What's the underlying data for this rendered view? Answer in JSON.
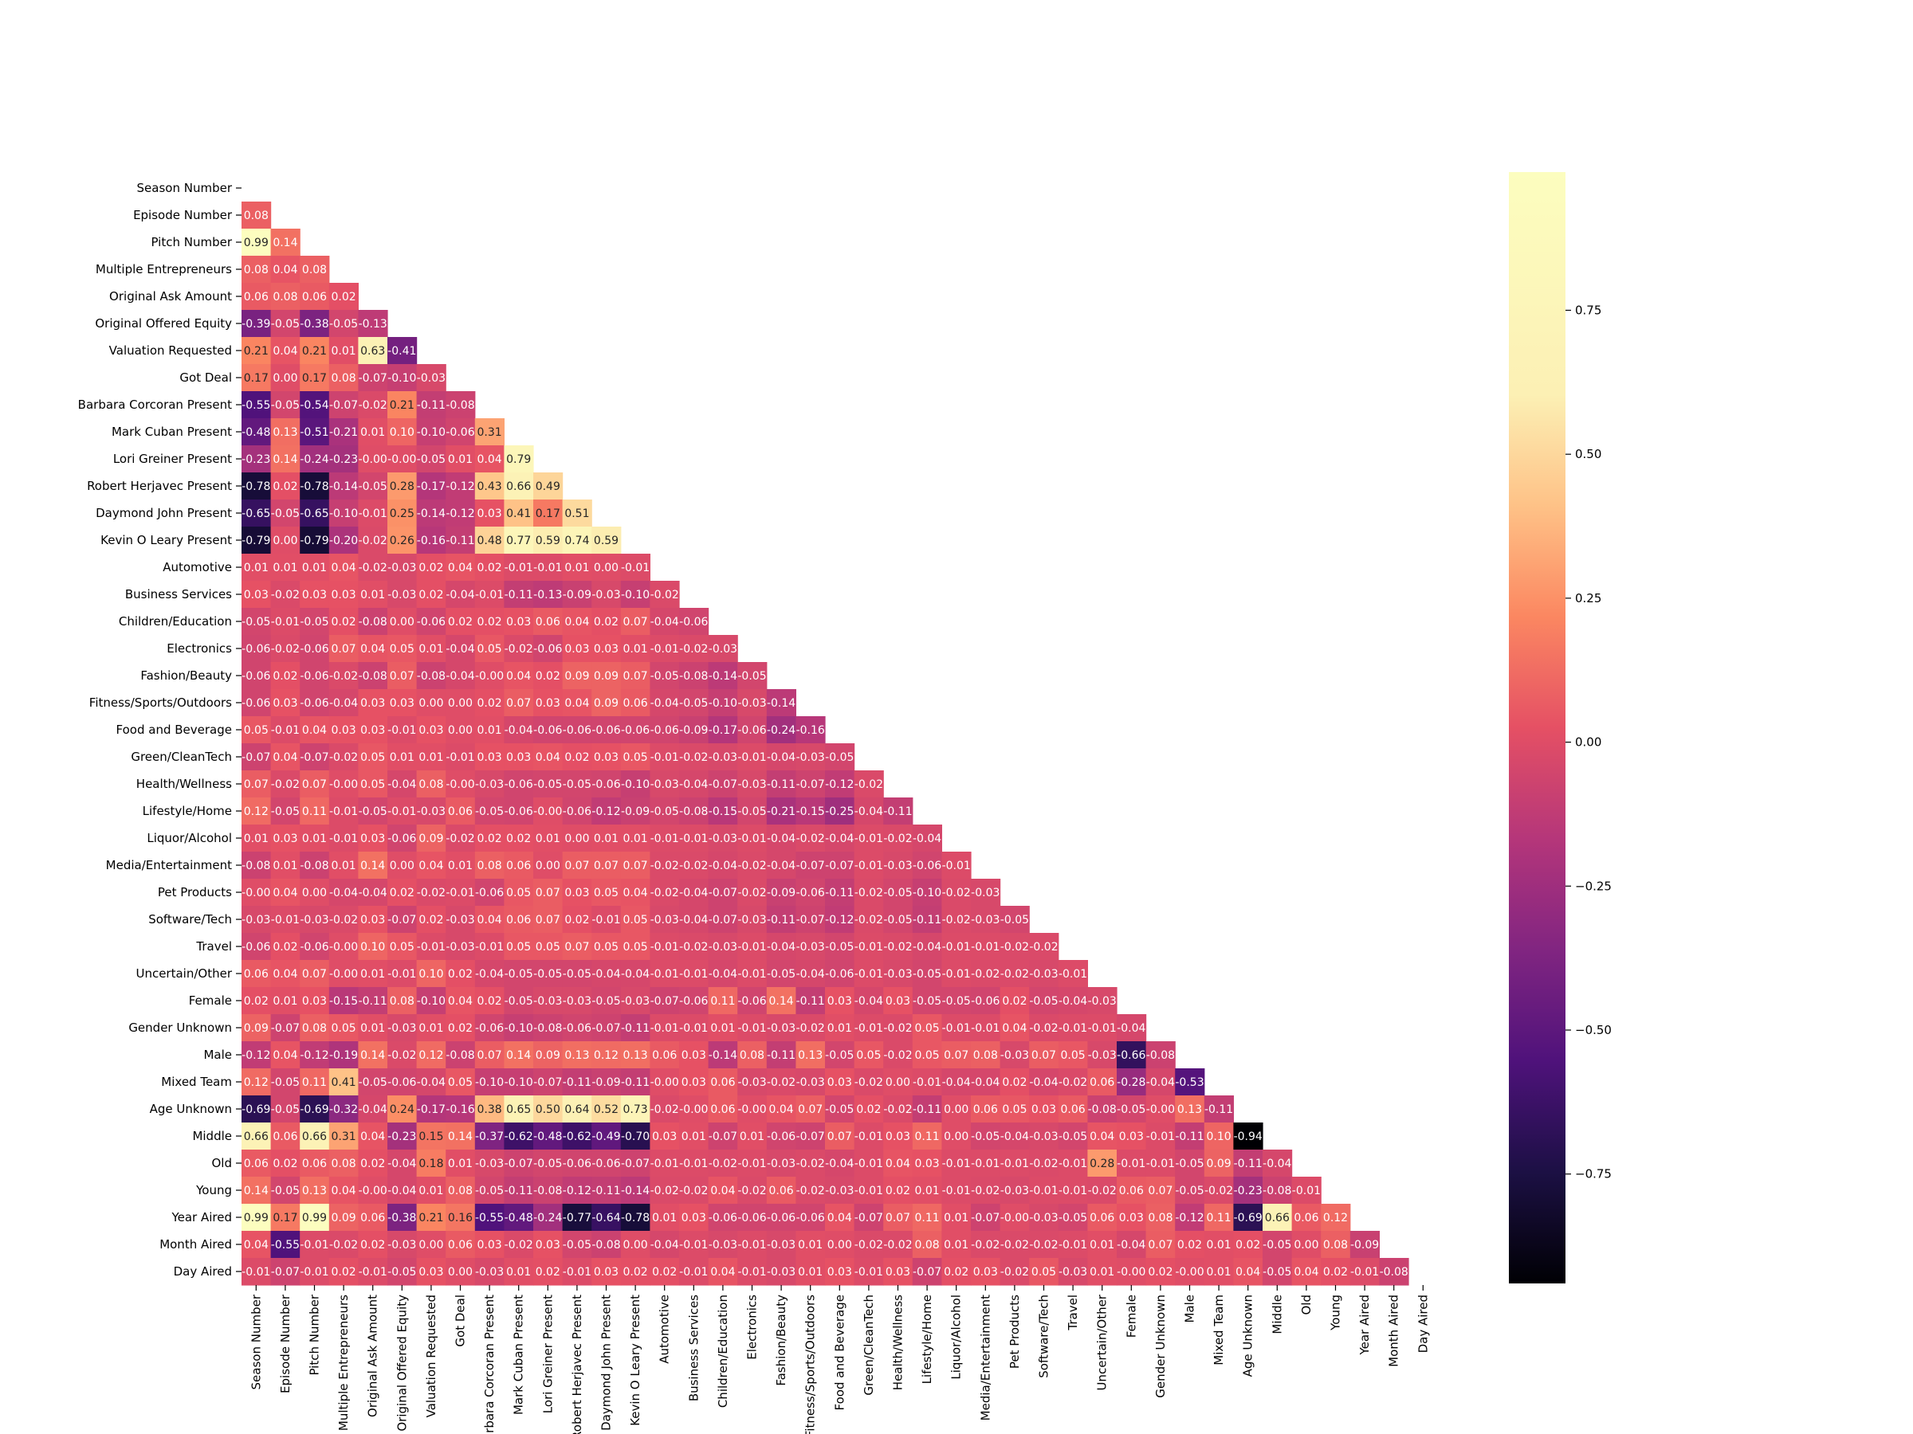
{
  "chart_data": {
    "type": "heatmap",
    "labels": [
      "Season Number",
      "Episode Number",
      "Pitch Number",
      "Multiple Entrepreneurs",
      "Original Ask Amount",
      "Original Offered Equity",
      "Valuation Requested",
      "Got Deal",
      "Barbara Corcoran Present",
      "Mark Cuban Present",
      "Lori Greiner Present",
      "Robert Herjavec Present",
      "Daymond John Present",
      "Kevin O Leary Present",
      "Automotive",
      "Business Services",
      "Children/Education",
      "Electronics",
      "Fashion/Beauty",
      "Fitness/Sports/Outdoors",
      "Food and Beverage",
      "Green/CleanTech",
      "Health/Wellness",
      "Lifestyle/Home",
      "Liquor/Alcohol",
      "Media/Entertainment",
      "Pet Products",
      "Software/Tech",
      "Travel",
      "Uncertain/Other",
      "Female",
      "Gender Unknown",
      "Male",
      "Mixed Team",
      "Age Unknown",
      "Middle",
      "Old",
      "Young",
      "Year Aired",
      "Month Aired",
      "Day Aired"
    ],
    "matrix_lower": [
      [],
      [
        0.08
      ],
      [
        0.99,
        0.14
      ],
      [
        0.08,
        0.04,
        0.08
      ],
      [
        0.06,
        0.08,
        0.06,
        0.02
      ],
      [
        -0.39,
        -0.05,
        -0.38,
        -0.05,
        -0.13
      ],
      [
        0.21,
        0.04,
        0.21,
        0.01,
        0.63,
        -0.41
      ],
      [
        0.17,
        0.0,
        0.17,
        0.08,
        -0.07,
        -0.1,
        -0.03
      ],
      [
        -0.55,
        -0.05,
        -0.54,
        -0.07,
        -0.02,
        0.21,
        -0.11,
        -0.08
      ],
      [
        -0.48,
        0.13,
        -0.51,
        -0.21,
        0.01,
        0.1,
        -0.1,
        -0.06,
        0.31
      ],
      [
        -0.23,
        0.14,
        -0.24,
        -0.23,
        -0.0,
        -0.0,
        -0.05,
        0.01,
        0.04,
        0.79
      ],
      [
        -0.78,
        0.02,
        -0.78,
        -0.14,
        -0.05,
        0.28,
        -0.17,
        -0.12,
        0.43,
        0.66,
        0.49
      ],
      [
        -0.65,
        -0.05,
        -0.65,
        -0.1,
        -0.01,
        0.25,
        -0.14,
        -0.12,
        0.03,
        0.41,
        0.17,
        0.51
      ],
      [
        -0.79,
        0.0,
        -0.79,
        -0.2,
        -0.02,
        0.26,
        -0.16,
        -0.11,
        0.48,
        0.77,
        0.59,
        0.74,
        0.59
      ],
      [
        0.01,
        0.01,
        0.01,
        0.04,
        -0.02,
        -0.03,
        0.02,
        0.04,
        0.02,
        -0.01,
        -0.01,
        0.01,
        0.0,
        -0.01
      ],
      [
        0.03,
        -0.02,
        0.03,
        0.03,
        0.01,
        -0.03,
        0.02,
        -0.04,
        -0.01,
        -0.11,
        -0.13,
        -0.09,
        -0.03,
        -0.1,
        -0.02
      ],
      [
        -0.05,
        -0.01,
        -0.05,
        0.02,
        -0.08,
        0.0,
        -0.06,
        0.02,
        0.02,
        0.03,
        0.06,
        0.04,
        0.02,
        0.07,
        -0.04,
        -0.06
      ],
      [
        -0.06,
        -0.02,
        -0.06,
        0.07,
        0.04,
        0.05,
        0.01,
        -0.04,
        0.05,
        -0.02,
        -0.06,
        0.03,
        0.03,
        0.01,
        -0.01,
        -0.02,
        -0.03
      ],
      [
        -0.06,
        0.02,
        -0.06,
        -0.02,
        -0.08,
        0.07,
        -0.08,
        -0.04,
        -0.0,
        0.04,
        0.02,
        0.09,
        0.09,
        0.07,
        -0.05,
        -0.08,
        -0.14,
        -0.05
      ],
      [
        -0.06,
        0.03,
        -0.06,
        -0.04,
        0.03,
        0.03,
        0.0,
        0.0,
        0.02,
        0.07,
        0.03,
        0.04,
        0.09,
        0.06,
        -0.04,
        -0.05,
        -0.1,
        -0.03,
        -0.14
      ],
      [
        0.05,
        -0.01,
        0.04,
        0.03,
        0.03,
        -0.01,
        0.03,
        0.0,
        0.01,
        -0.04,
        -0.06,
        -0.06,
        -0.06,
        -0.06,
        -0.06,
        -0.09,
        -0.17,
        -0.06,
        -0.24,
        -0.16
      ],
      [
        -0.07,
        0.04,
        -0.07,
        -0.02,
        0.05,
        0.01,
        0.01,
        -0.01,
        0.03,
        0.03,
        0.04,
        0.02,
        0.03,
        0.05,
        -0.01,
        -0.02,
        -0.03,
        -0.01,
        -0.04,
        -0.03,
        -0.05
      ],
      [
        0.07,
        -0.02,
        0.07,
        -0.0,
        0.05,
        -0.04,
        0.08,
        -0.0,
        -0.03,
        -0.06,
        -0.05,
        -0.05,
        -0.06,
        -0.1,
        -0.03,
        -0.04,
        -0.07,
        -0.03,
        -0.11,
        -0.07,
        -0.12,
        -0.02
      ],
      [
        0.12,
        -0.05,
        0.11,
        -0.01,
        -0.05,
        -0.01,
        -0.03,
        0.06,
        -0.05,
        -0.06,
        -0.0,
        -0.06,
        -0.12,
        -0.09,
        -0.05,
        -0.08,
        -0.15,
        -0.05,
        -0.21,
        -0.15,
        -0.25,
        -0.04,
        -0.11
      ],
      [
        0.01,
        0.03,
        0.01,
        -0.01,
        0.03,
        -0.06,
        0.09,
        -0.02,
        0.02,
        0.02,
        0.01,
        0.0,
        0.01,
        0.01,
        -0.01,
        -0.01,
        -0.03,
        -0.01,
        -0.04,
        -0.02,
        -0.04,
        -0.01,
        -0.02,
        -0.04
      ],
      [
        -0.08,
        0.01,
        -0.08,
        0.01,
        0.14,
        0.0,
        0.04,
        0.01,
        0.08,
        0.06,
        0.0,
        0.07,
        0.07,
        0.07,
        -0.02,
        -0.02,
        -0.04,
        -0.02,
        -0.04,
        -0.07,
        -0.07,
        -0.01,
        -0.03,
        -0.06,
        -0.01
      ],
      [
        -0.0,
        0.04,
        0.0,
        -0.04,
        -0.04,
        0.02,
        -0.02,
        -0.01,
        -0.06,
        0.05,
        0.07,
        0.03,
        0.05,
        0.04,
        -0.02,
        -0.04,
        -0.07,
        -0.02,
        -0.09,
        -0.06,
        -0.11,
        -0.02,
        -0.05,
        -0.1,
        -0.02,
        -0.03
      ],
      [
        -0.03,
        -0.01,
        -0.03,
        -0.02,
        0.03,
        -0.07,
        0.02,
        -0.03,
        0.04,
        0.06,
        0.07,
        0.02,
        -0.01,
        0.05,
        -0.03,
        -0.04,
        -0.07,
        -0.03,
        -0.11,
        -0.07,
        -0.12,
        -0.02,
        -0.05,
        -0.11,
        -0.02,
        -0.03,
        -0.05
      ],
      [
        -0.06,
        0.02,
        -0.06,
        -0.0,
        0.1,
        0.05,
        -0.01,
        -0.03,
        -0.01,
        0.05,
        0.05,
        0.07,
        0.05,
        0.05,
        -0.01,
        -0.02,
        -0.03,
        -0.01,
        -0.04,
        -0.03,
        -0.05,
        -0.01,
        -0.02,
        -0.04,
        -0.01,
        -0.01,
        -0.02,
        -0.02
      ],
      [
        0.06,
        0.04,
        0.07,
        -0.0,
        0.01,
        -0.01,
        0.1,
        0.02,
        -0.04,
        -0.05,
        -0.05,
        -0.05,
        -0.04,
        -0.04,
        -0.01,
        -0.01,
        -0.04,
        -0.01,
        -0.05,
        -0.04,
        -0.06,
        -0.01,
        -0.03,
        -0.05,
        -0.01,
        -0.02,
        -0.02,
        -0.03,
        -0.01
      ],
      [
        0.02,
        0.01,
        0.03,
        -0.15,
        -0.11,
        0.08,
        -0.1,
        0.04,
        0.02,
        -0.05,
        -0.03,
        -0.03,
        -0.05,
        -0.03,
        -0.07,
        -0.06,
        0.11,
        -0.06,
        0.14,
        -0.11,
        0.03,
        -0.04,
        0.03,
        -0.05,
        -0.05,
        -0.06,
        0.02,
        -0.05,
        -0.04,
        -0.03
      ],
      [
        0.09,
        -0.07,
        0.08,
        0.05,
        0.01,
        -0.03,
        0.01,
        0.02,
        -0.06,
        -0.1,
        -0.08,
        -0.06,
        -0.07,
        -0.11,
        -0.01,
        -0.01,
        0.01,
        -0.01,
        -0.03,
        -0.02,
        0.01,
        -0.01,
        -0.02,
        0.05,
        -0.01,
        -0.01,
        0.04,
        -0.02,
        -0.01,
        -0.01,
        -0.04
      ],
      [
        -0.12,
        0.04,
        -0.12,
        -0.19,
        0.14,
        -0.02,
        0.12,
        -0.08,
        0.07,
        0.14,
        0.09,
        0.13,
        0.12,
        0.13,
        0.06,
        0.03,
        -0.14,
        0.08,
        -0.11,
        0.13,
        -0.05,
        0.05,
        -0.02,
        0.05,
        0.07,
        0.08,
        -0.03,
        0.07,
        0.05,
        -0.03,
        -0.66,
        -0.08
      ],
      [
        0.12,
        -0.05,
        0.11,
        0.41,
        -0.05,
        -0.06,
        -0.04,
        0.05,
        -0.1,
        -0.1,
        -0.07,
        -0.11,
        -0.09,
        -0.11,
        -0.0,
        0.03,
        0.06,
        -0.03,
        -0.02,
        -0.03,
        0.03,
        -0.02,
        0.0,
        -0.01,
        -0.04,
        -0.04,
        0.02,
        -0.04,
        -0.02,
        0.06,
        -0.28,
        -0.04,
        -0.53
      ],
      [
        -0.69,
        -0.05,
        -0.69,
        -0.32,
        -0.04,
        0.24,
        -0.17,
        -0.16,
        0.38,
        0.65,
        0.5,
        0.64,
        0.52,
        0.73,
        -0.02,
        -0.0,
        0.06,
        -0.0,
        0.04,
        0.07,
        -0.05,
        0.02,
        -0.02,
        -0.11,
        0.0,
        0.06,
        0.05,
        0.03,
        0.06,
        -0.08,
        -0.05,
        -0.0,
        0.13,
        -0.11
      ],
      [
        0.66,
        0.06,
        0.66,
        0.31,
        0.04,
        -0.23,
        0.15,
        0.14,
        -0.37,
        -0.62,
        -0.48,
        -0.62,
        -0.49,
        -0.7,
        0.03,
        0.01,
        -0.07,
        0.01,
        -0.06,
        -0.07,
        0.07,
        -0.01,
        0.03,
        0.11,
        0.0,
        -0.05,
        -0.04,
        -0.03,
        -0.05,
        0.04,
        0.03,
        -0.01,
        -0.11,
        0.1,
        -0.94
      ],
      [
        0.06,
        0.02,
        0.06,
        0.08,
        0.02,
        -0.04,
        0.18,
        0.01,
        -0.03,
        -0.07,
        -0.05,
        -0.06,
        -0.06,
        -0.07,
        -0.01,
        -0.01,
        -0.02,
        -0.01,
        -0.03,
        -0.02,
        -0.04,
        -0.01,
        0.04,
        0.03,
        -0.01,
        -0.01,
        -0.01,
        -0.02,
        -0.01,
        0.28,
        -0.01,
        -0.01,
        -0.05,
        0.09,
        -0.11,
        -0.04
      ],
      [
        0.14,
        -0.05,
        0.13,
        0.04,
        -0.0,
        -0.04,
        0.01,
        0.08,
        -0.05,
        -0.11,
        -0.08,
        -0.12,
        -0.11,
        -0.14,
        -0.02,
        -0.02,
        0.04,
        -0.02,
        0.06,
        -0.02,
        -0.03,
        -0.01,
        0.02,
        0.01,
        -0.01,
        -0.02,
        -0.03,
        -0.01,
        -0.01,
        -0.02,
        0.06,
        0.07,
        -0.05,
        -0.02,
        -0.23,
        -0.08,
        -0.01
      ],
      [
        0.99,
        0.17,
        0.99,
        0.09,
        0.06,
        -0.38,
        0.21,
        0.16,
        -0.55,
        -0.48,
        -0.24,
        -0.77,
        -0.64,
        -0.78,
        0.01,
        0.03,
        -0.06,
        -0.06,
        -0.06,
        -0.06,
        0.04,
        -0.07,
        0.07,
        0.11,
        0.01,
        -0.07,
        -0.0,
        -0.03,
        -0.05,
        0.06,
        0.03,
        0.08,
        -0.12,
        0.11,
        -0.69,
        0.66,
        0.06,
        0.12
      ],
      [
        0.04,
        -0.55,
        -0.01,
        -0.02,
        0.02,
        -0.03,
        0.0,
        0.06,
        0.03,
        -0.02,
        0.03,
        -0.05,
        -0.08,
        0.0,
        -0.04,
        -0.01,
        -0.03,
        -0.01,
        -0.03,
        0.01,
        0.0,
        -0.02,
        -0.02,
        0.08,
        0.01,
        -0.02,
        -0.02,
        -0.02,
        -0.01,
        0.01,
        -0.04,
        0.07,
        0.02,
        0.01,
        0.02,
        -0.05,
        0.0,
        0.08,
        -0.09
      ],
      [
        -0.01,
        -0.07,
        -0.01,
        0.02,
        -0.01,
        -0.05,
        0.03,
        0.0,
        -0.03,
        0.01,
        0.02,
        -0.01,
        0.03,
        0.02,
        0.02,
        -0.01,
        0.04,
        -0.01,
        -0.03,
        0.01,
        0.03,
        -0.01,
        0.03,
        -0.07,
        0.02,
        0.03,
        -0.02,
        0.05,
        -0.03,
        0.01,
        -0.0,
        0.02,
        -0.0,
        0.01,
        0.04,
        -0.05,
        0.04,
        0.02,
        -0.01,
        -0.08
      ]
    ],
    "colormap": "magma",
    "vmin": -0.94,
    "vmax": 0.99,
    "colorbar_ticks": [
      0.75,
      0.5,
      0.25,
      0.0,
      -0.25,
      -0.5,
      -0.75
    ],
    "colorbar_tick_labels": [
      "0.75",
      "0.50",
      "0.25",
      "0.00",
      "−0.25",
      "−0.50",
      "−0.75"
    ]
  }
}
